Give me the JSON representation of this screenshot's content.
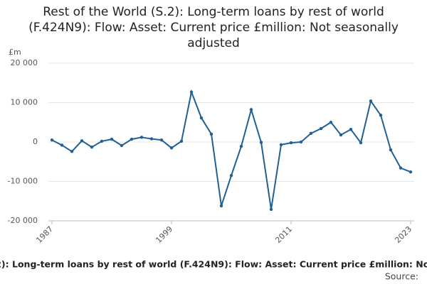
{
  "chart_data": {
    "type": "line",
    "title": "Rest of the World (S.2): Long-term loans by rest of world (F.424N9): Flow: Asset: Current price £million: Not seasonally adjusted",
    "y_unit": "£m",
    "source_label": "Source:",
    "x": [
      1987,
      1988,
      1989,
      1990,
      1991,
      1992,
      1993,
      1994,
      1995,
      1996,
      1997,
      1998,
      1999,
      2000,
      2001,
      2002,
      2003,
      2004,
      2005,
      2006,
      2007,
      2008,
      2009,
      2010,
      2011,
      2012,
      2013,
      2014,
      2015,
      2016,
      2017,
      2018,
      2019,
      2020,
      2021,
      2022,
      2023
    ],
    "series": [
      {
        "name": "Long-term loans by rest of world",
        "color": "#206095",
        "values": [
          500,
          -800,
          -2400,
          300,
          -1300,
          200,
          700,
          -900,
          700,
          1200,
          800,
          500,
          -1500,
          200,
          12700,
          6100,
          2000,
          -16200,
          -8500,
          -1100,
          8200,
          -100,
          -17100,
          -700,
          -200,
          0,
          2200,
          3400,
          5000,
          1800,
          3200,
          -200,
          10400,
          6800,
          -2000,
          -6600,
          -7600
        ]
      }
    ],
    "xlim": [
      1987,
      2023
    ],
    "xticks": [
      1987,
      1999,
      2011,
      2023
    ],
    "ylim": [
      -20000,
      20000
    ],
    "yticks": [
      {
        "value": -20000,
        "label": "-20 000"
      },
      {
        "value": -10000,
        "label": "-10 000"
      },
      0,
      {
        "value": 10000,
        "label": "10 000"
      },
      {
        "value": 20000,
        "label": "20 000"
      }
    ],
    "grid": true
  }
}
